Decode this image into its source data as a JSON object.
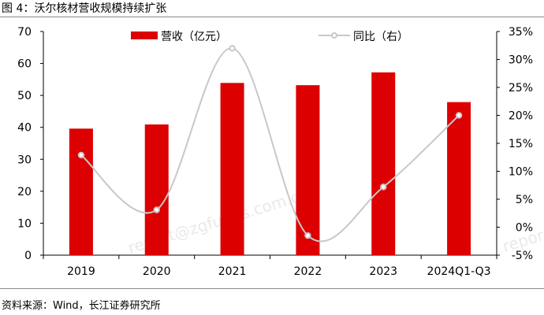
{
  "figure": {
    "title": "图 4：沃尔核材营收规模持续扩张",
    "source": "资料来源：Wind，长江证券研究所",
    "watermark": "report@zgfunds.com.cn",
    "watermark_right": "repor"
  },
  "chart_data": {
    "type": "bar",
    "categories": [
      "2019",
      "2020",
      "2021",
      "2022",
      "2023",
      "2024Q1-Q3"
    ],
    "series": [
      {
        "name": "营收（亿元）",
        "type": "bar",
        "axis": "left",
        "color": "#dd0000",
        "values": [
          39.6,
          40.9,
          53.9,
          53.2,
          57.2,
          47.9
        ]
      },
      {
        "name": "同比（右）",
        "type": "line",
        "axis": "right",
        "smooth": true,
        "color": "#c8c8c8",
        "values": [
          0.129,
          0.031,
          0.32,
          -0.015,
          0.072,
          0.2
        ]
      }
    ],
    "ylim_left": [
      0,
      70
    ],
    "yticks_left": [
      "0",
      "10",
      "20",
      "30",
      "40",
      "50",
      "60",
      "70"
    ],
    "ylim_right": [
      -0.05,
      0.35
    ],
    "yticks_right": [
      "-5%",
      "0%",
      "5%",
      "10%",
      "15%",
      "20%",
      "25%",
      "30%",
      "35%"
    ],
    "grid": false,
    "legend": "top"
  }
}
